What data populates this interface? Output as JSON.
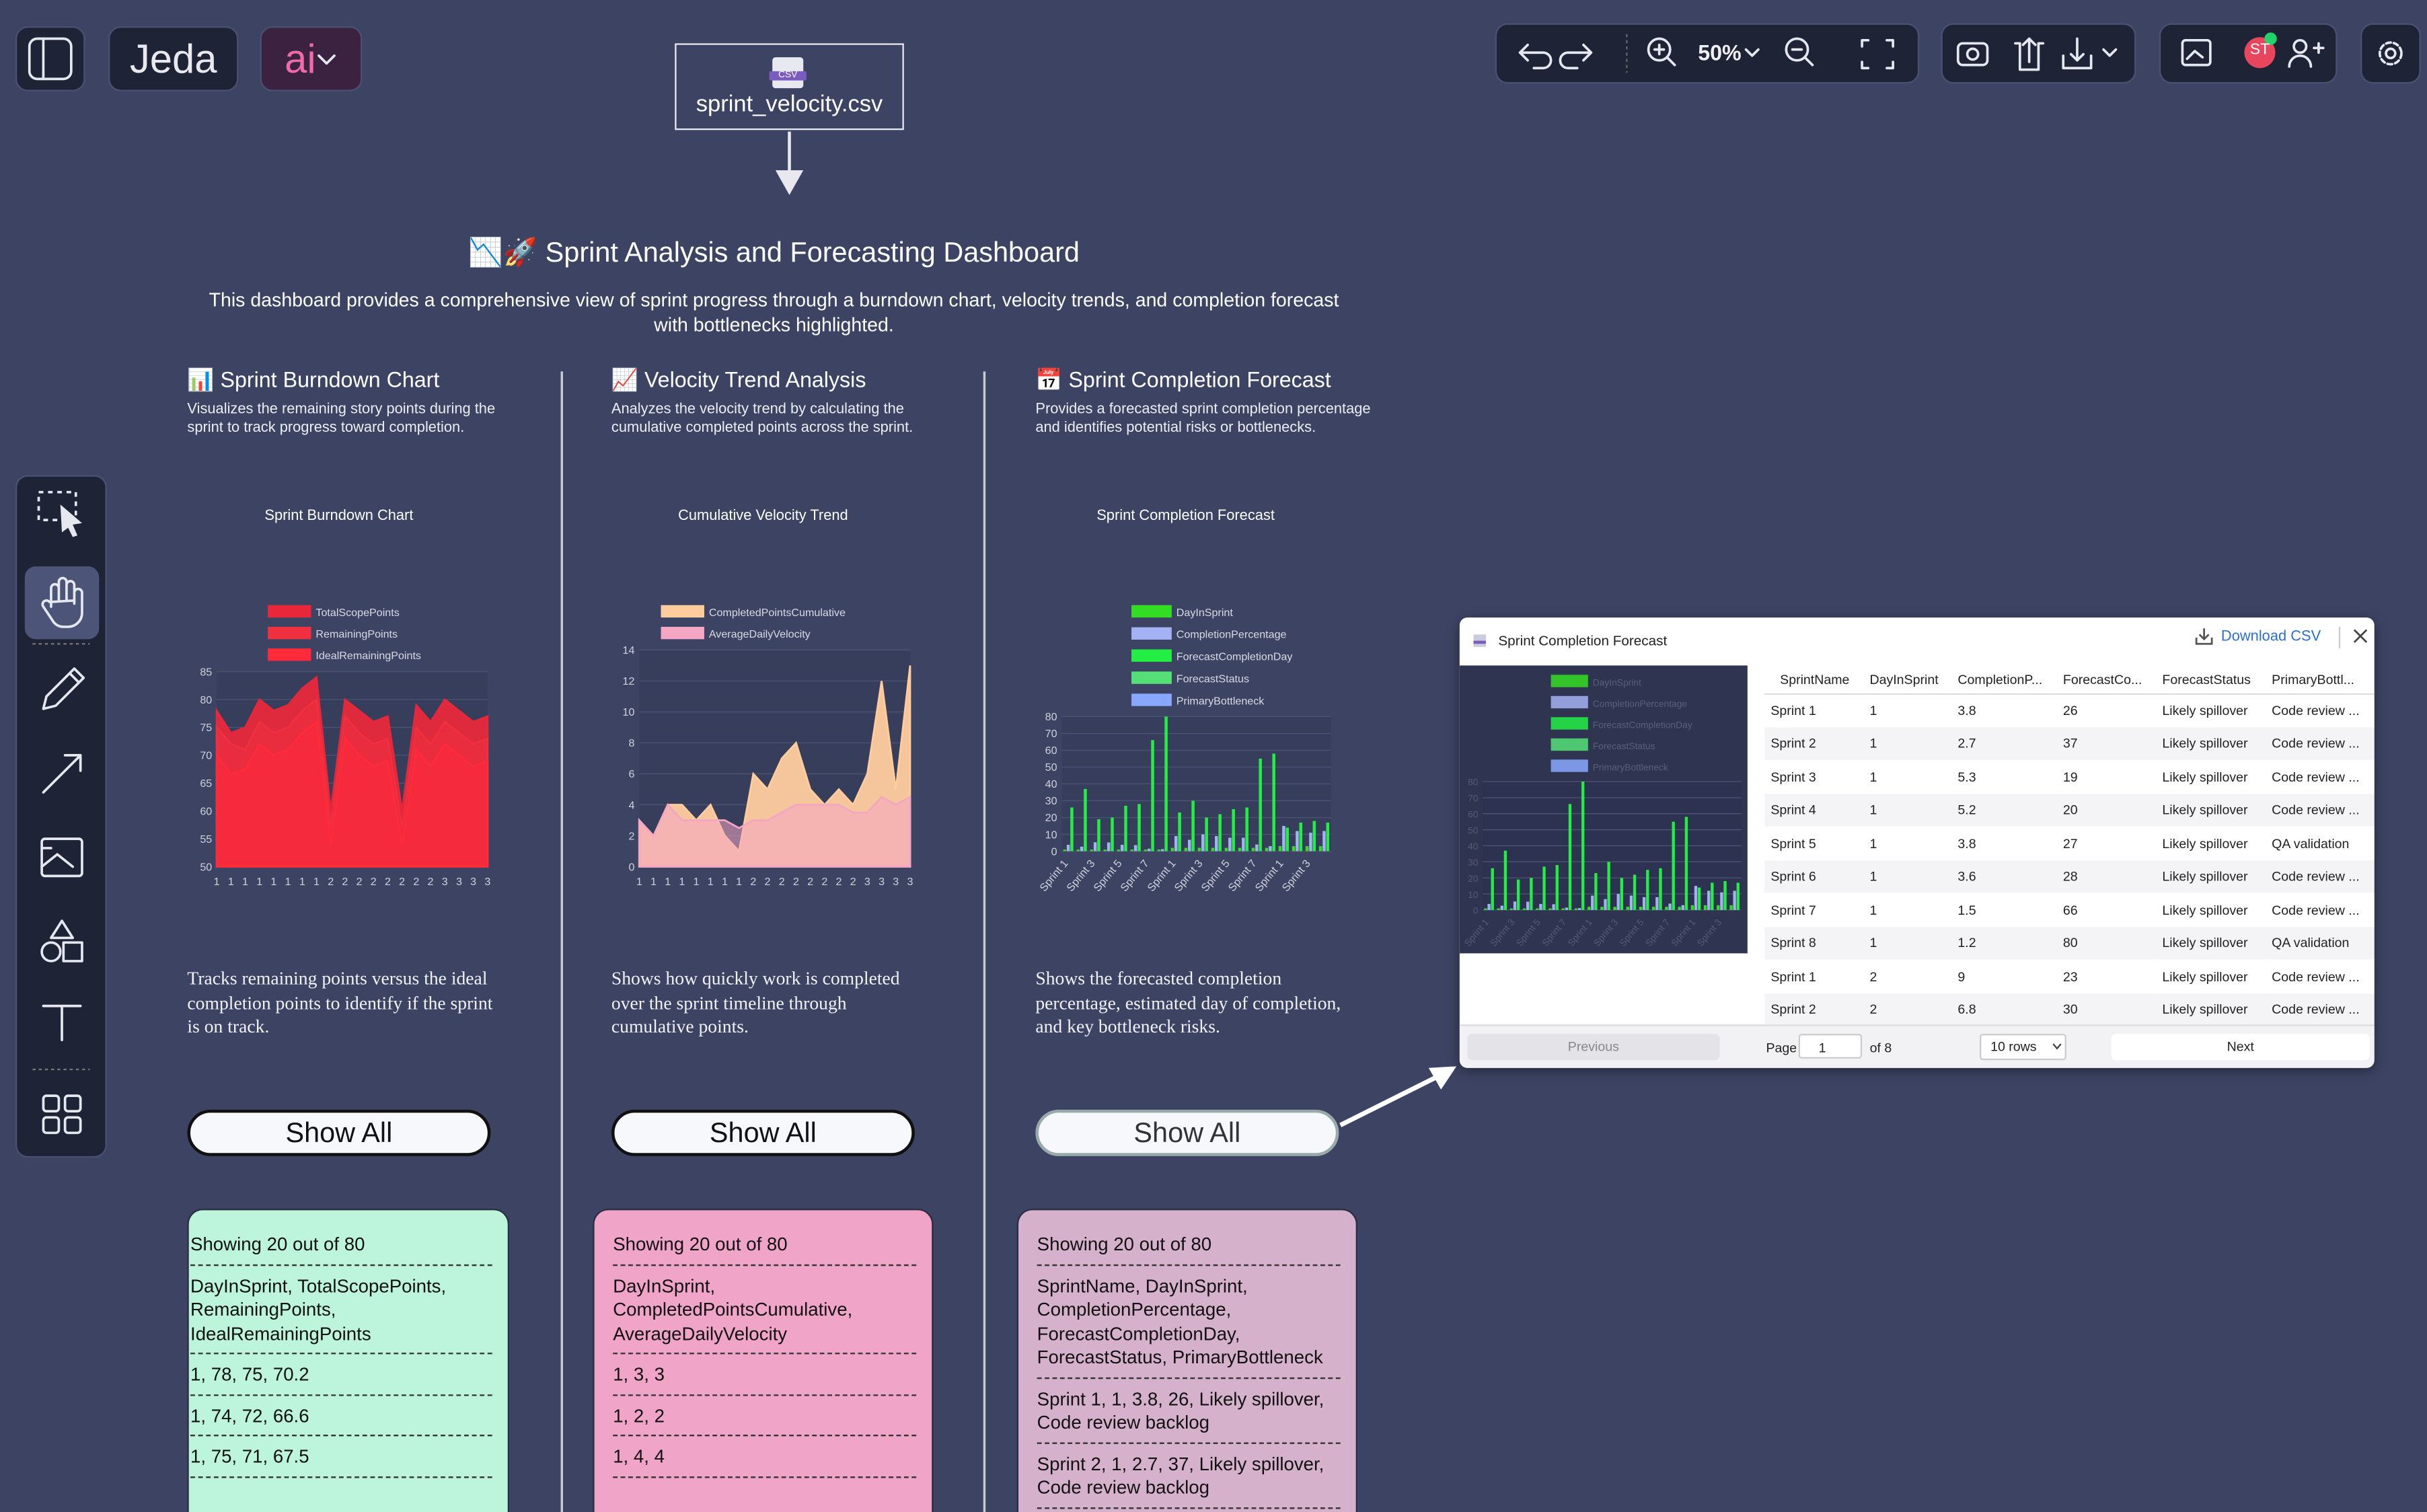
{
  "toolbar": {
    "brand": "Jeda",
    "ai": "ai",
    "zoom": "50%",
    "avatar": "ST"
  },
  "file_node": {
    "badge": "CSV",
    "name": "sprint_velocity.csv"
  },
  "dashboard": {
    "title": "📉🚀 Sprint Analysis and Forecasting Dashboard",
    "description": "This dashboard provides a comprehensive view of sprint progress through a burndown chart, velocity trends, and completion forecast with bottlenecks highlighted."
  },
  "panels": [
    {
      "title": "📊 Sprint Burndown Chart",
      "description": "Visualizes the remaining story points during the sprint to track progress toward completion.",
      "chart": {
        "type": "area",
        "title": "Sprint Burndown Chart",
        "grid": true,
        "categories": [
          "1",
          "1",
          "1",
          "1",
          "1",
          "1",
          "1",
          "1",
          "2",
          "2",
          "2",
          "2",
          "2",
          "2",
          "2",
          "2",
          "3",
          "3",
          "3",
          "3"
        ],
        "ylim": [
          50,
          85
        ],
        "yticks": [
          50,
          55,
          60,
          65,
          70,
          75,
          80,
          85
        ],
        "series": [
          {
            "name": "TotalScopePoints",
            "color": "#e8283a",
            "values": [
              78,
              74,
              75,
              80,
              78,
              79,
              82,
              84,
              60,
              80,
              78,
              76,
              77,
              60,
              79,
              76,
              80,
              78,
              76,
              77
            ]
          },
          {
            "name": "RemainingPoints",
            "color": "#f0303f",
            "values": [
              75,
              72,
              71,
              76,
              74,
              75,
              78,
              80,
              57,
              77,
              74,
              72,
              73,
              57,
              75,
              72,
              76,
              74,
              72,
              73
            ]
          },
          {
            "name": "IdealRemainingPoints",
            "color": "#ff2a3a",
            "values": [
              70.2,
              66.6,
              67.5,
              72,
              70,
              71,
              74,
              76,
              54,
              73,
              70,
              68,
              69,
              54,
              71,
              68,
              72,
              70,
              68,
              69
            ]
          }
        ]
      },
      "caption": "Tracks remaining points versus the ideal completion points to identify if the sprint is on track.",
      "button": "Show All",
      "card": [
        "Showing 20 out of 80",
        "DayInSprint, TotalScopePoints, RemainingPoints, IdealRemainingPoints",
        "1, 78, 75, 70.2",
        "1, 74, 72, 66.6",
        "1, 75, 71, 67.5"
      ]
    },
    {
      "title": "📈 Velocity Trend Analysis",
      "description": "Analyzes the velocity trend by calculating the cumulative completed points across the sprint.",
      "chart": {
        "type": "area",
        "title": "Cumulative Velocity Trend",
        "grid": true,
        "categories": [
          "1",
          "1",
          "1",
          "1",
          "1",
          "1",
          "1",
          "1",
          "2",
          "2",
          "2",
          "2",
          "2",
          "2",
          "2",
          "2",
          "3",
          "3",
          "3",
          "3"
        ],
        "ylim": [
          0,
          14
        ],
        "yticks": [
          0,
          2,
          4,
          6,
          8,
          10,
          12,
          14
        ],
        "series": [
          {
            "name": "CompletedPointsCumulative",
            "color": "#ffcc9e",
            "values": [
              3,
              2,
              4,
              4,
              3,
              4,
              2,
              1,
              6,
              5,
              7,
              8,
              5,
              4,
              5,
              4,
              6,
              12,
              5,
              13
            ]
          },
          {
            "name": "AverageDailyVelocity",
            "color": "#f4a6c2",
            "values": [
              3,
              2,
              4,
              3,
              3,
              3,
              3,
              2.5,
              3,
              3,
              3.5,
              4,
              4,
              4,
              4,
              3.5,
              3.5,
              4.5,
              4,
              4.5
            ]
          }
        ]
      },
      "caption": "Shows how quickly work is completed over the sprint timeline through cumulative points.",
      "button": "Show All",
      "card": [
        "Showing 20 out of 80",
        "DayInSprint, CompletedPointsCumulative, AverageDailyVelocity",
        "1, 3, 3",
        "1, 2, 2",
        "1, 4, 4"
      ]
    },
    {
      "title": "📅 Sprint Completion Forecast",
      "description": "Provides a forecasted sprint completion percentage and identifies potential risks or bottlenecks.",
      "chart": {
        "type": "bar",
        "title": "Sprint Completion Forecast",
        "grid": true,
        "categories": [
          "Sprint 1",
          null,
          "Sprint 3",
          null,
          "Sprint 5",
          null,
          "Sprint 7",
          null,
          "Sprint 1",
          null,
          "Sprint 3",
          null,
          "Sprint 5",
          null,
          "Sprint 7",
          null,
          "Sprint 1",
          null,
          "Sprint 3",
          null
        ],
        "ylim": [
          0,
          80
        ],
        "yticks": [
          0,
          10,
          20,
          30,
          40,
          50,
          60,
          70,
          80
        ],
        "series": [
          {
            "name": "DayInSprint",
            "color": "#33dd22",
            "values": [
              1,
              1,
              1,
              1,
              1,
              1,
              1,
              1,
              2,
              2,
              2,
              2,
              2,
              2,
              2,
              2,
              3,
              3,
              3,
              3
            ]
          },
          {
            "name": "CompletionPercentage",
            "color": "#a3b2f2",
            "values": [
              3.8,
              2.7,
              5.3,
              5.2,
              3.8,
              3.6,
              1.5,
              1.2,
              9,
              6.8,
              10,
              9,
              8,
              8,
              4,
              3,
              15,
              12,
              11,
              12
            ]
          },
          {
            "name": "ForecastCompletionDay",
            "color": "#22ee44",
            "values": [
              26,
              37,
              19,
              20,
              27,
              28,
              66,
              80,
              23,
              30,
              20,
              22,
              25,
              26,
              55,
              58,
              14,
              17,
              18,
              17
            ]
          },
          {
            "name": "ForecastStatus",
            "color": "#55e077"
          },
          {
            "name": "PrimaryBottleneck",
            "color": "#88a8ff"
          }
        ]
      },
      "caption": "Shows the forecasted completion percentage, estimated day of completion, and key bottleneck risks.",
      "button": "Show All",
      "card": [
        "Showing 20 out of 80",
        "SprintName, DayInSprint, CompletionPercentage, ForecastCompletionDay, ForecastStatus, PrimaryBottleneck",
        "Sprint 1, 1, 3.8, 26, Likely spillover, Code review backlog",
        "Sprint 2, 1, 2.7, 37, Likely spillover, Code review backlog"
      ]
    }
  ],
  "modal": {
    "title": "Sprint Completion Forecast",
    "download": "Download CSV",
    "columns": [
      "SprintName",
      "DayInSprint",
      "CompletionP...",
      "ForecastCo...",
      "ForecastStatus",
      "PrimaryBottl..."
    ],
    "rows": [
      [
        "Sprint 1",
        "1",
        "3.8",
        "26",
        "Likely spillover",
        "Code review ..."
      ],
      [
        "Sprint 2",
        "1",
        "2.7",
        "37",
        "Likely spillover",
        "Code review ..."
      ],
      [
        "Sprint 3",
        "1",
        "5.3",
        "19",
        "Likely spillover",
        "Code review ..."
      ],
      [
        "Sprint 4",
        "1",
        "5.2",
        "20",
        "Likely spillover",
        "Code review ..."
      ],
      [
        "Sprint 5",
        "1",
        "3.8",
        "27",
        "Likely spillover",
        "QA validation"
      ],
      [
        "Sprint 6",
        "1",
        "3.6",
        "28",
        "Likely spillover",
        "Code review ..."
      ],
      [
        "Sprint 7",
        "1",
        "1.5",
        "66",
        "Likely spillover",
        "Code review ..."
      ],
      [
        "Sprint 8",
        "1",
        "1.2",
        "80",
        "Likely spillover",
        "QA validation"
      ],
      [
        "Sprint 1",
        "2",
        "9",
        "23",
        "Likely spillover",
        "Code review ..."
      ],
      [
        "Sprint 2",
        "2",
        "6.8",
        "30",
        "Likely spillover",
        "Code review ..."
      ]
    ],
    "pagination": {
      "previous": "Previous",
      "page_label": "Page",
      "page": "1",
      "of": "of 8",
      "rows": "10 rows",
      "next": "Next"
    }
  }
}
